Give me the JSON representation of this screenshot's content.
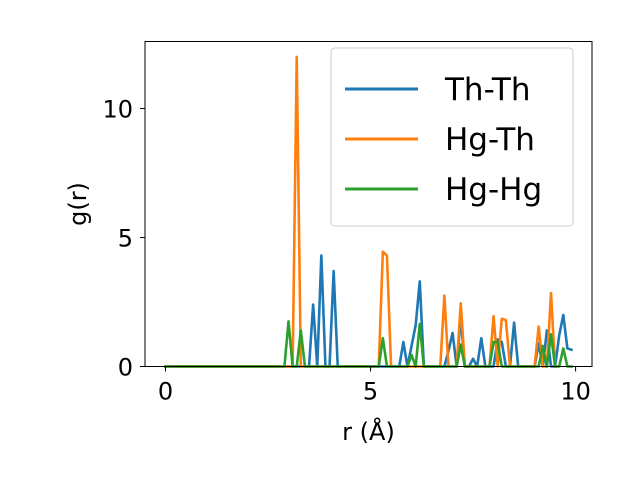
{
  "chart_data": {
    "type": "line",
    "xlabel": "r (Å)",
    "ylabel": "g(r)",
    "xlim": [
      -0.5,
      10.4
    ],
    "ylim": [
      0,
      12.6
    ],
    "xticks": [
      0,
      5,
      10
    ],
    "xtick_labels": [
      "0",
      "5",
      "10"
    ],
    "yticks": [
      0,
      5,
      10
    ],
    "ytick_labels": [
      "0",
      "5",
      "10"
    ],
    "grid": false,
    "legend_position": "top-right",
    "series": [
      {
        "name": "Th-Th",
        "color": "#1f77b4",
        "x": [
          0,
          3.4,
          3.5,
          3.6,
          3.7,
          3.8,
          3.9,
          4.0,
          4.1,
          4.2,
          5.6,
          5.7,
          5.8,
          5.9,
          6.0,
          6.1,
          6.2,
          6.3,
          6.8,
          6.9,
          7.0,
          7.1,
          7.2,
          7.3,
          7.4,
          7.5,
          7.6,
          7.7,
          7.8,
          7.9,
          8.0,
          8.1,
          8.2,
          8.3,
          8.4,
          8.5,
          8.6,
          8.7,
          8.8,
          8.9,
          9.0,
          9.1,
          9.2,
          9.3,
          9.4,
          9.5,
          9.6,
          9.7,
          9.8,
          9.9
        ],
        "y": [
          0,
          0,
          0,
          2.4,
          0,
          4.3,
          0,
          0,
          3.7,
          0,
          0,
          0,
          0.95,
          0,
          0.8,
          1.6,
          3.3,
          0,
          0,
          0.6,
          1.3,
          0,
          1.9,
          0,
          0,
          0.3,
          0,
          1.1,
          0,
          0,
          0,
          1.05,
          0.95,
          0,
          0,
          1.7,
          0,
          0,
          0,
          0,
          0,
          0.9,
          0,
          1.4,
          0,
          0,
          1.2,
          2.0,
          0.7,
          0.65
        ]
      },
      {
        "name": "Hg-Th",
        "color": "#ff7f0e",
        "x": [
          0,
          3.0,
          3.1,
          3.2,
          3.3,
          3.4,
          5.1,
          5.2,
          5.3,
          5.4,
          5.5,
          6.6,
          6.7,
          6.8,
          6.9,
          7.0,
          7.1,
          7.2,
          7.3,
          7.9,
          8.0,
          8.1,
          8.2,
          8.3,
          8.4,
          8.5,
          8.9,
          9.0,
          9.1,
          9.2,
          9.3,
          9.4,
          9.5
        ],
        "y": [
          0,
          0,
          0,
          12.0,
          0,
          0,
          0,
          0,
          4.45,
          4.3,
          0,
          0,
          0,
          2.75,
          0,
          0,
          0,
          2.45,
          0,
          0,
          1.95,
          0,
          1.85,
          1.8,
          0,
          0,
          0,
          0,
          1.55,
          0,
          0,
          2.85,
          0
        ]
      },
      {
        "name": "Hg-Hg",
        "color": "#2ca02c",
        "x": [
          0,
          2.9,
          3.0,
          3.1,
          3.2,
          3.3,
          3.4,
          5.2,
          5.3,
          5.4,
          5.5,
          5.9,
          6.0,
          6.1,
          6.2,
          6.3,
          7.0,
          7.1,
          7.2,
          7.3,
          7.8,
          7.9,
          8.0,
          8.1,
          8.2,
          8.3,
          9.0,
          9.1,
          9.2,
          9.3,
          9.4,
          9.5,
          9.6,
          9.7,
          9.8,
          9.9
        ],
        "y": [
          0,
          0,
          1.75,
          0,
          0,
          1.4,
          0,
          0,
          1.1,
          0,
          0,
          0,
          0.45,
          0,
          1.65,
          0,
          0,
          0,
          0.85,
          0,
          0,
          0,
          0.95,
          0.95,
          0,
          0,
          0,
          0,
          0.8,
          0,
          1.25,
          0,
          0,
          0.7,
          0,
          0
        ]
      }
    ]
  }
}
